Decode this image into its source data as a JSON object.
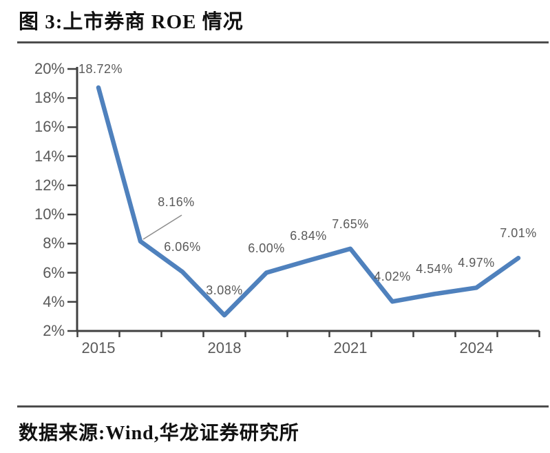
{
  "figure": {
    "title": "图 3:上市券商 ROE 情况",
    "source": "数据来源:Wind,华龙证券研究所"
  },
  "chart_data": {
    "type": "line",
    "title": "上市券商 ROE 情况",
    "x": [
      2015,
      2016,
      2017,
      2018,
      2019,
      2020,
      2021,
      2022,
      2023,
      2024,
      2025
    ],
    "values": [
      18.72,
      8.16,
      6.06,
      3.08,
      6.0,
      6.84,
      7.65,
      4.02,
      4.54,
      4.97,
      7.01
    ],
    "point_labels": [
      "18.72%",
      "8.16%",
      "6.06%",
      "3.08%",
      "6.00%",
      "6.84%",
      "7.65%",
      "4.02%",
      "4.54%",
      "4.97%",
      "7.01%"
    ],
    "xlabel": "",
    "ylabel": "",
    "ylim": [
      2,
      20
    ],
    "y_tick_step": 2,
    "y_tick_labels": [
      "2%",
      "4%",
      "6%",
      "8%",
      "10%",
      "12%",
      "14%",
      "16%",
      "18%",
      "20%"
    ],
    "x_axis_labeled_years": [
      "2015",
      "2018",
      "2021",
      "2024"
    ],
    "grid": false,
    "legend": "none",
    "units": "percent",
    "colors": {
      "line": "#4f81bd",
      "axis": "#404040",
      "tick_label": "#595959",
      "data_label": "#595959",
      "leader_line": "#8c8c8c"
    },
    "annotations": [
      {
        "label": "8.16%",
        "note": "callout with leader line to 2016 point"
      }
    ]
  }
}
